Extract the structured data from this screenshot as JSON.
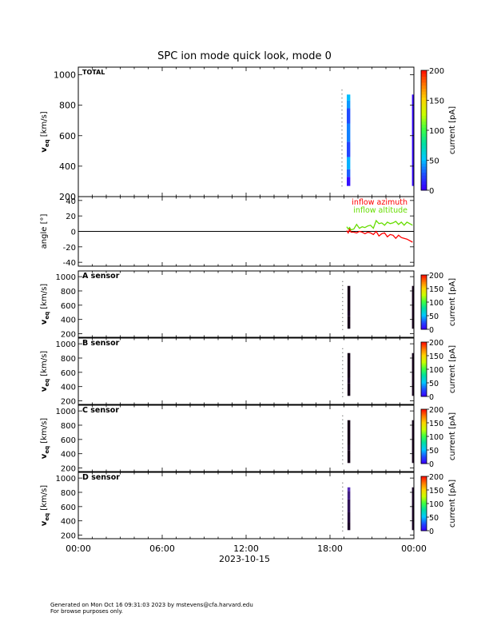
{
  "chart_data": {
    "title": "SPC ion mode quick look, mode 0",
    "type": "heatmap",
    "x_axis": {
      "tick_labels": [
        "00:00",
        "06:00",
        "12:00",
        "18:00",
        "00:00"
      ],
      "tick_hours": [
        0,
        6,
        12,
        18,
        24
      ],
      "range_hours": [
        0,
        24
      ],
      "date_label": "2023-10-15"
    },
    "colorbar": {
      "label": "current [pA]",
      "range": [
        0,
        200
      ],
      "ticks_large": [
        0,
        50,
        100,
        150,
        200
      ],
      "ticks_small": [
        0,
        50,
        100,
        150,
        200
      ]
    },
    "panels": [
      {
        "id": "total",
        "label": "TOTAL",
        "ylabel_main": "v",
        "ylabel_sub": "eq",
        "ylabel_unit": "[km/s]",
        "ylim": [
          200,
          1050
        ],
        "yticks": [
          200,
          400,
          600,
          800,
          1000
        ],
        "spectrogram": {
          "time_hours": [
            19.2,
            19.45
          ],
          "v_range": [
            270,
            870
          ],
          "bands": [
            {
              "v0": 270,
              "v1": 330,
              "current": 5
            },
            {
              "v0": 330,
              "v1": 380,
              "current": 28
            },
            {
              "v0": 380,
              "v1": 460,
              "current": 45
            },
            {
              "v0": 460,
              "v1": 560,
              "current": 22
            },
            {
              "v0": 560,
              "v1": 680,
              "current": 35
            },
            {
              "v0": 680,
              "v1": 780,
              "current": 24
            },
            {
              "v0": 780,
              "v1": 830,
              "current": 40
            },
            {
              "v0": 830,
              "v1": 870,
              "current": 48
            }
          ]
        },
        "right_edge_band": {
          "time_hours": 23.95,
          "v_range": [
            270,
            870
          ],
          "current": 3
        }
      },
      {
        "id": "angle",
        "ylabel": "angle [°]",
        "ylim": [
          -45,
          45
        ],
        "yticks": [
          -40,
          -20,
          0,
          20,
          40
        ],
        "zero_line": true,
        "legend": [
          "inflow azimuth",
          "inflow altitude"
        ],
        "series": [
          {
            "name": "inflow azimuth",
            "color": "#ff0000",
            "x": [
              19.2,
              19.3,
              19.4,
              19.5,
              19.7,
              19.9,
              20.1,
              20.3,
              20.5,
              20.7,
              20.9,
              21.1,
              21.3,
              21.5,
              21.7,
              21.9,
              22.1,
              22.3,
              22.5,
              22.7,
              22.9,
              23.1,
              23.3,
              23.5,
              23.7,
              23.9
            ],
            "y": [
              1,
              -2,
              3,
              -1,
              -1,
              -2,
              0,
              -1,
              -3,
              -1,
              -2,
              -4,
              0,
              -6,
              -3,
              -2,
              -7,
              -4,
              -5,
              -9,
              -5,
              -8,
              -9,
              -10,
              -12,
              -14
            ]
          },
          {
            "name": "inflow altitude",
            "color": "#66dd00",
            "x": [
              19.2,
              19.3,
              19.4,
              19.5,
              19.7,
              19.9,
              20.1,
              20.3,
              20.5,
              20.7,
              20.9,
              21.1,
              21.3,
              21.5,
              21.7,
              21.9,
              22.1,
              22.3,
              22.5,
              22.7,
              22.9,
              23.1,
              23.3,
              23.5,
              23.7,
              23.9
            ],
            "y": [
              6,
              3,
              5,
              2,
              3,
              9,
              4,
              6,
              5,
              7,
              8,
              4,
              14,
              10,
              11,
              8,
              12,
              10,
              11,
              13,
              9,
              12,
              8,
              12,
              10,
              8
            ]
          }
        ]
      },
      {
        "id": "a",
        "label": "A sensor",
        "ylabel_main": "v",
        "ylabel_sub": "eq",
        "ylabel_unit": "[km/s]",
        "ylim": [
          150,
          1080
        ],
        "yticks": [
          200,
          400,
          600,
          800,
          1000
        ],
        "spectrogram": {
          "time_hours": [
            19.25,
            19.45
          ],
          "v_range": [
            270,
            870
          ],
          "bands": [
            {
              "v0": 270,
              "v1": 450,
              "current": 1
            },
            {
              "v0": 450,
              "v1": 520,
              "current": 3
            },
            {
              "v0": 520,
              "v1": 870,
              "current": 0.5
            }
          ]
        },
        "right_edge_band": {
          "time_hours": 23.95,
          "v_range": [
            270,
            870
          ],
          "current": 2
        }
      },
      {
        "id": "b",
        "label": "B sensor",
        "ylabel_main": "v",
        "ylabel_sub": "eq",
        "ylabel_unit": "[km/s]",
        "ylim": [
          150,
          1080
        ],
        "yticks": [
          200,
          400,
          600,
          800,
          1000
        ],
        "spectrogram": {
          "time_hours": [
            19.25,
            19.45
          ],
          "v_range": [
            270,
            870
          ],
          "bands": [
            {
              "v0": 270,
              "v1": 450,
              "current": 1
            },
            {
              "v0": 450,
              "v1": 520,
              "current": 3
            },
            {
              "v0": 520,
              "v1": 870,
              "current": 0.5
            }
          ]
        },
        "right_edge_band": {
          "time_hours": 23.95,
          "v_range": [
            270,
            870
          ],
          "current": 2
        }
      },
      {
        "id": "c",
        "label": "C sensor",
        "ylabel_main": "v",
        "ylabel_sub": "eq",
        "ylabel_unit": "[km/s]",
        "ylim": [
          150,
          1080
        ],
        "yticks": [
          200,
          400,
          600,
          800,
          1000
        ],
        "spectrogram": {
          "time_hours": [
            19.25,
            19.45
          ],
          "v_range": [
            270,
            870
          ],
          "bands": [
            {
              "v0": 270,
              "v1": 450,
              "current": 1
            },
            {
              "v0": 450,
              "v1": 520,
              "current": 3
            },
            {
              "v0": 520,
              "v1": 870,
              "current": 0.5
            }
          ]
        },
        "right_edge_band": {
          "time_hours": 23.95,
          "v_range": [
            270,
            870
          ],
          "current": 2
        }
      },
      {
        "id": "d",
        "label": "D sensor",
        "ylabel_main": "v",
        "ylabel_sub": "eq",
        "ylabel_unit": "[km/s]",
        "ylim": [
          150,
          1080
        ],
        "yticks": [
          200,
          400,
          600,
          800,
          1000
        ],
        "spectrogram": {
          "time_hours": [
            19.25,
            19.45
          ],
          "v_range": [
            270,
            870
          ],
          "bands": [
            {
              "v0": 270,
              "v1": 380,
              "current": 4
            },
            {
              "v0": 380,
              "v1": 520,
              "current": 7
            },
            {
              "v0": 520,
              "v1": 700,
              "current": 12
            },
            {
              "v0": 700,
              "v1": 820,
              "current": 20
            },
            {
              "v0": 820,
              "v1": 870,
              "current": 30
            }
          ]
        },
        "right_edge_band": {
          "time_hours": 23.95,
          "v_range": [
            270,
            870
          ],
          "current": 4
        }
      }
    ]
  },
  "footer": {
    "line1": "Generated on Mon Oct 16 09:31:03 2023 by mstevens@cfa.harvard.edu",
    "line2": "For browse purposes only."
  }
}
